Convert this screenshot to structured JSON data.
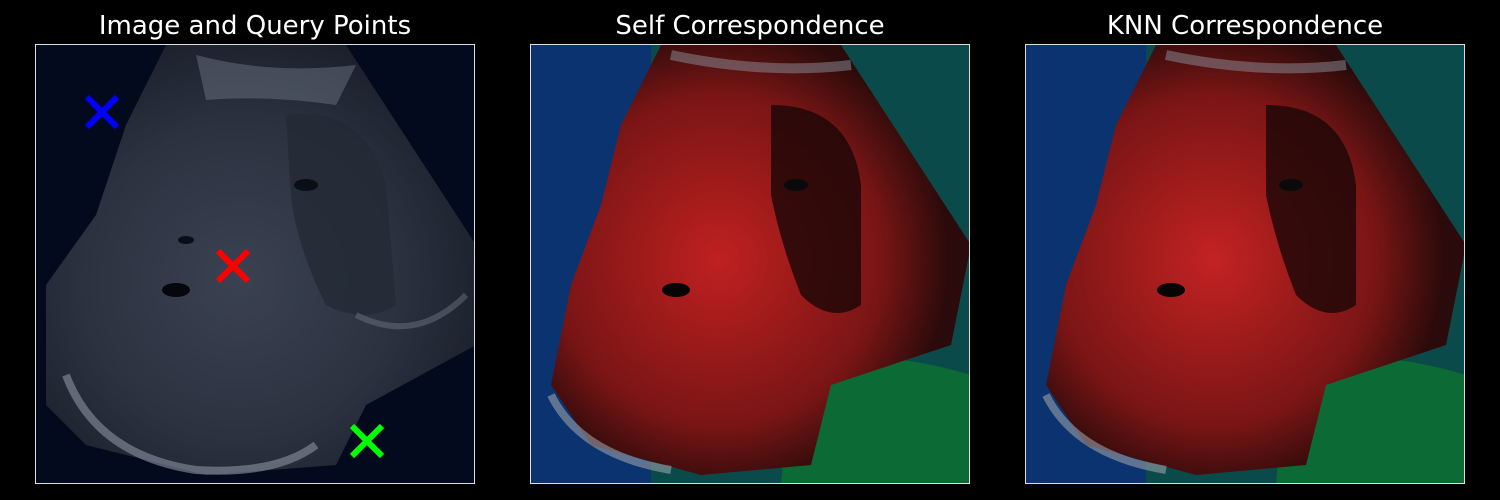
{
  "figure": {
    "panels": [
      {
        "title": "Image and Query Points"
      },
      {
        "title": "Self Correspondence"
      },
      {
        "title": "KNN Correspondence"
      }
    ],
    "query_points": [
      {
        "color": "#0000ff",
        "icon": "x-marker-icon"
      },
      {
        "color": "#ff0000",
        "icon": "x-marker-icon"
      },
      {
        "color": "#00ff00",
        "icon": "x-marker-icon"
      }
    ],
    "colors": {
      "background": "#000000",
      "ultrasound_bg": "#040a1e",
      "overlay_red": "#c02020",
      "overlay_green": "#0c6a34",
      "overlay_blue": "#0a2a80",
      "overlay_teal": "#0b4a4a"
    }
  }
}
